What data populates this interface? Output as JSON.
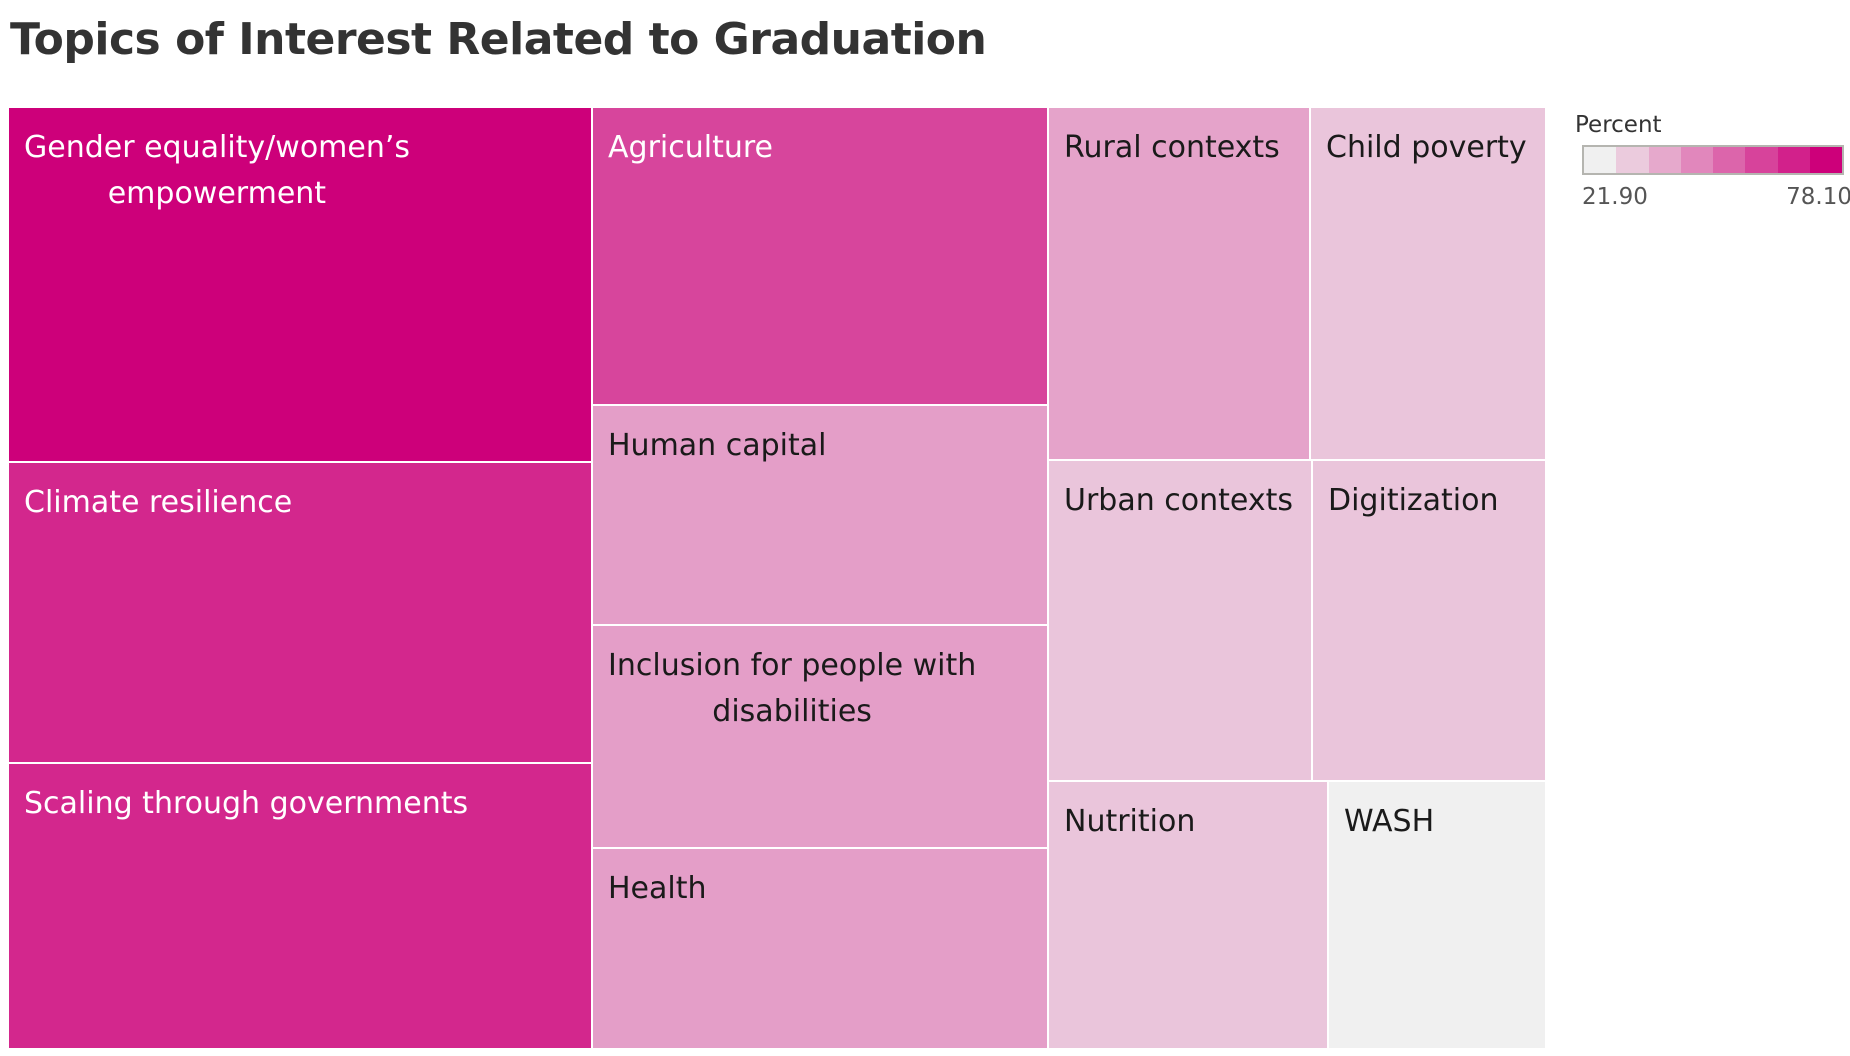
{
  "chart_data": {
    "type": "treemap",
    "title": "Topics of Interest Related to Graduation",
    "color_scale": {
      "label": "Percent",
      "min": 21.9,
      "max": 78.1,
      "min_label": "21.90",
      "max_label": "78.10",
      "colors": [
        "#f0f0f0",
        "#ebcbdd",
        "#e6a9cc",
        "#e187bc",
        "#dc65ab",
        "#d7439b",
        "#d2218b",
        "#cd007a"
      ]
    },
    "items": [
      {
        "label": "Gender equality/women’s empowerment",
        "label_lines": [
          "Gender equality/women’s",
          "empowerment"
        ],
        "value": 78.1
      },
      {
        "label": "Agriculture",
        "label_lines": [
          "Agriculture"
        ],
        "value": 62
      },
      {
        "label": "Climate resilience",
        "label_lines": [
          "Climate resilience"
        ],
        "value": 69
      },
      {
        "label": "Scaling through governments",
        "label_lines": [
          "Scaling through governments"
        ],
        "value": 69
      },
      {
        "label": "Human capital",
        "label_lines": [
          "Human capital"
        ],
        "value": 41
      },
      {
        "label": "Inclusion for people with disabilities",
        "label_lines": [
          "Inclusion for people with",
          "disabilities"
        ],
        "value": 41
      },
      {
        "label": "Health",
        "label_lines": [
          "Health"
        ],
        "value": 41
      },
      {
        "label": "Rural contexts",
        "label_lines": [
          "Rural contexts"
        ],
        "value": 40
      },
      {
        "label": "Child poverty",
        "label_lines": [
          "Child poverty"
        ],
        "value": 32
      },
      {
        "label": "Urban contexts",
        "label_lines": [
          "Urban contexts"
        ],
        "value": 32
      },
      {
        "label": "Digitization",
        "label_lines": [
          "Digitization"
        ],
        "value": 32
      },
      {
        "label": "Nutrition",
        "label_lines": [
          "Nutrition"
        ],
        "value": 32
      },
      {
        "label": "WASH",
        "label_lines": [
          "WASH"
        ],
        "value": 21.9
      }
    ]
  }
}
